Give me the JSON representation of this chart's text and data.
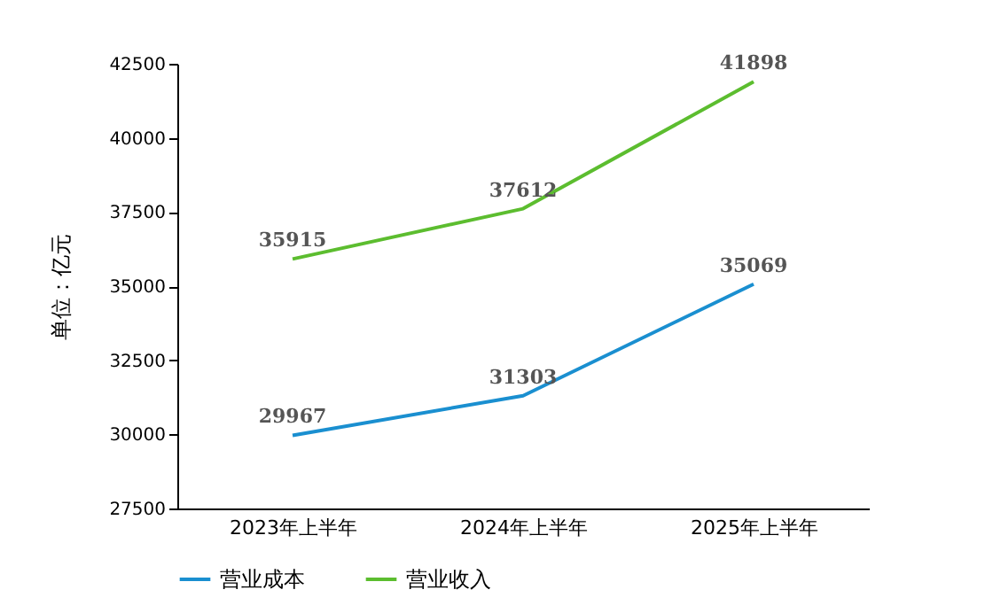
{
  "chart_data": {
    "type": "line",
    "ylabel": "单位：亿元",
    "categories": [
      "2023年上半年",
      "2024年上半年",
      "2025年上半年"
    ],
    "series": [
      {
        "name": "营业成本",
        "color": "#1a8fd0",
        "values": [
          29967,
          31303,
          35069
        ]
      },
      {
        "name": "营业收入",
        "color": "#5cbd2f",
        "values": [
          35915,
          37612,
          41898
        ]
      }
    ],
    "ylim": [
      27500,
      42500
    ],
    "yticks": [
      27500,
      30000,
      32500,
      35000,
      37500,
      40000,
      42500
    ],
    "grid": false,
    "legend": "bottom",
    "data_labels": true,
    "marker": "none",
    "line_style": "solid"
  }
}
